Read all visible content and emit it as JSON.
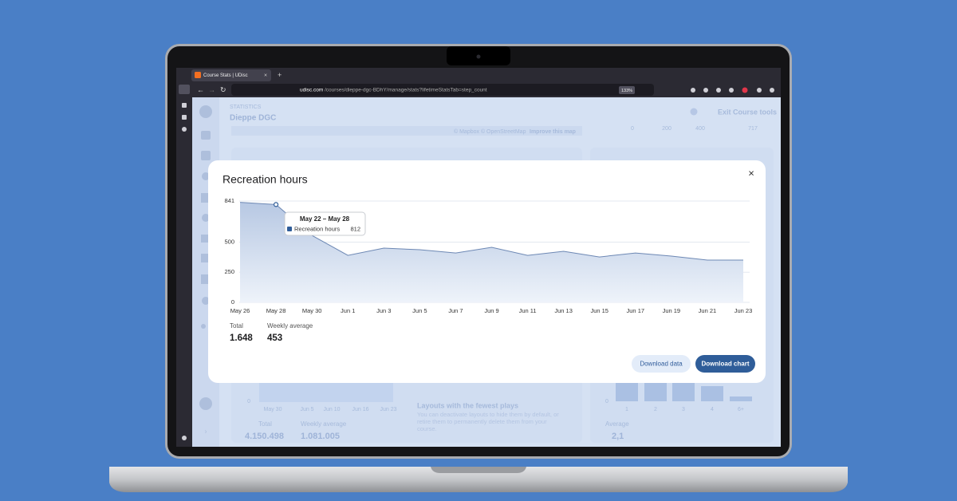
{
  "browser": {
    "tab_title": "Course Stats | UDisc",
    "url_domain": "udisc.com",
    "url_path": "/courses/dieppe-dgc-BDhY/manage/stats?lifetimeStatsTab=step_count",
    "zoom": "133%"
  },
  "page": {
    "section": "STATISTICS",
    "course": "Dieppe DGC",
    "map_credit": "© Mapbox © OpenStreetMap",
    "map_link": "Improve this map",
    "exit": "Exit Course tools",
    "top_axis": [
      "0",
      "200",
      "400",
      "717"
    ],
    "bg_chart_axis": [
      "0",
      "May 30",
      "Jun 5",
      "Jun 10",
      "Jun 16",
      "Jun 23"
    ],
    "total_label": "Total",
    "total": "4.150.498",
    "avg_label": "Weekly average",
    "avg": "1.081.005",
    "layouts_title": "Layouts with the fewest plays",
    "layouts_text": [
      "You can deactivate layouts to hide them by default, or",
      "retire them to permanently delete them from your",
      "course."
    ],
    "hist_axis": [
      "0",
      "1",
      "2",
      "3",
      "4",
      "6+"
    ],
    "hist_avg_label": "Average",
    "hist_avg": "2,1"
  },
  "chart_data": {
    "type": "area",
    "title": "Recreation hours",
    "categories": [
      "May 26",
      "May 28",
      "May 30",
      "Jun 1",
      "Jun 3",
      "Jun 5",
      "Jun 7",
      "Jun 9",
      "Jun 11",
      "Jun 13",
      "Jun 15",
      "Jun 17",
      "Jun 19",
      "Jun 21",
      "Jun 23"
    ],
    "series": [
      {
        "name": "Recreation hours",
        "color": "#2f5d99",
        "values": [
          830,
          812,
          556,
          390,
          450,
          437,
          410,
          457,
          390,
          424,
          377,
          410,
          384,
          351,
          351
        ]
      }
    ],
    "ylim": [
      0,
      841
    ],
    "yticks": [
      0,
      250,
      500,
      841
    ],
    "grid": true,
    "tooltip": {
      "title": "May 22 – May 28",
      "index": 1
    },
    "total_label": "Total",
    "total": "1.648",
    "avg_label": "Weekly average",
    "avg": "453",
    "buttons": [
      "Download data",
      "Download chart"
    ]
  }
}
